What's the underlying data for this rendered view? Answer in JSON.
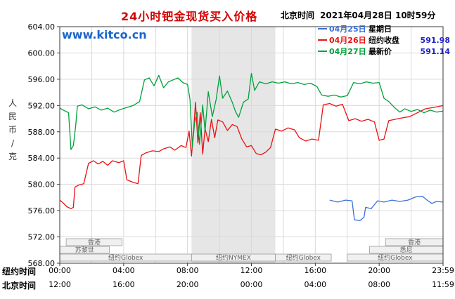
{
  "header": {
    "title": "24小时钯金现货买入价格",
    "time_label": "北京时间",
    "time_value": "2021年04月28日 10时59分"
  },
  "watermark": "www.kitco.cn",
  "y_axis_label": "人民币/克",
  "colors": {
    "title_red": "#d40000",
    "watermark_blue": "#1a66cc",
    "series_apr25_blue": "#3a6fd8",
    "series_apr26_red": "#e81212",
    "series_apr27_green": "#00a13b",
    "legend_value_blue": "#2222cc",
    "grid_gray": "#d9d9d9",
    "band_gray": "#e6e6e6"
  },
  "legend": [
    {
      "date": "04月25日",
      "label": "星期日",
      "value": "",
      "color": "#3a6fd8"
    },
    {
      "date": "04月26日",
      "label": "纽约收盘",
      "value": "591.98",
      "color": "#e81212"
    },
    {
      "date": "04月27日",
      "label": "最新价",
      "value": "591.14",
      "color": "#00a13b"
    }
  ],
  "axis": {
    "ny_label": "纽约时间",
    "bj_label": "北京时间",
    "x_tick_times": [
      0,
      4,
      8,
      12,
      16,
      20,
      24
    ],
    "ny_ticks": [
      "00:00",
      "04:00",
      "08:00",
      "12:00",
      "16:00",
      "20:00",
      "23:59"
    ],
    "bj_ticks": [
      "12:00",
      "16:00",
      "20:00",
      "00:00",
      "04:00",
      "08:00",
      "11:59"
    ],
    "y_ticks": [
      "604.00",
      "600.00",
      "596.00",
      "592.00",
      "588.00",
      "584.00",
      "580.00",
      "576.00",
      "572.00",
      "568.00"
    ]
  },
  "sessions": {
    "rows": [
      {
        "y": 340,
        "h": 10,
        "boxes": [
          {
            "label": "香港",
            "start": 0.4,
            "end": 3.9
          },
          {
            "label": "香港",
            "start": 20.4,
            "end": 24
          }
        ]
      },
      {
        "y": 351,
        "h": 10,
        "boxes": [
          {
            "label": "苏黎世",
            "start": 0,
            "end": 3.1
          },
          {
            "label": "悉尼",
            "start": 19.4,
            "end": 24
          }
        ]
      },
      {
        "y": 362,
        "h": 10,
        "boxes": [
          {
            "label": "纽约Globex",
            "start": 0,
            "end": 8.25
          },
          {
            "label": "纽约NYMEX",
            "start": 8.25,
            "end": 13.5
          },
          {
            "label": "纽约Globex",
            "start": 13.5,
            "end": 17.0
          },
          {
            "label": "纽约Globex",
            "start": 18.0,
            "end": 24
          }
        ]
      }
    ]
  },
  "chart_data": {
    "type": "line",
    "title": "24小时钯金现货买入价格",
    "ylabel": "人民币/克",
    "xlabel_rows": [
      "纽约时间",
      "北京时间"
    ],
    "ylim": [
      568,
      604
    ],
    "xlim": [
      0,
      24
    ],
    "grid": true,
    "legend_position": "top-right",
    "highlight_band": {
      "start": 8.25,
      "end": 13.5,
      "color": "#e6e6e6",
      "meaning": "纽约NYMEX session"
    },
    "series": [
      {
        "id": "apr25",
        "name": "04月25日 星期日",
        "color": "#3a6fd8",
        "points": [
          [
            16.9,
            577.6
          ],
          [
            17.4,
            577.3
          ],
          [
            17.9,
            577.6
          ],
          [
            18.3,
            577.5
          ],
          [
            18.45,
            574.6
          ],
          [
            18.8,
            574.5
          ],
          [
            19.05,
            575.0
          ],
          [
            19.15,
            576.5
          ],
          [
            19.5,
            576.3
          ],
          [
            19.9,
            577.5
          ],
          [
            20.3,
            577.3
          ],
          [
            20.8,
            577.6
          ],
          [
            21.3,
            577.4
          ],
          [
            21.8,
            577.6
          ],
          [
            22.3,
            578.1
          ],
          [
            22.7,
            578.2
          ],
          [
            23.0,
            577.6
          ],
          [
            23.3,
            577.1
          ],
          [
            23.6,
            577.4
          ],
          [
            23.98,
            577.3
          ]
        ]
      },
      {
        "id": "apr26",
        "name": "04月26日 纽约收盘 591.98",
        "color": "#e81212",
        "points": [
          [
            0,
            577.6
          ],
          [
            0.2,
            577.2
          ],
          [
            0.45,
            576.6
          ],
          [
            0.7,
            576.3
          ],
          [
            0.85,
            576.5
          ],
          [
            0.95,
            579.6
          ],
          [
            1.2,
            579.9
          ],
          [
            1.5,
            580.1
          ],
          [
            1.8,
            583.2
          ],
          [
            2.1,
            583.6
          ],
          [
            2.4,
            583.1
          ],
          [
            2.7,
            583.5
          ],
          [
            3.0,
            582.9
          ],
          [
            3.3,
            583.6
          ],
          [
            3.7,
            583.3
          ],
          [
            4.0,
            583.6
          ],
          [
            4.2,
            580.7
          ],
          [
            4.6,
            580.3
          ],
          [
            4.9,
            580.1
          ],
          [
            5.1,
            584.4
          ],
          [
            5.4,
            584.8
          ],
          [
            5.8,
            585.1
          ],
          [
            6.2,
            585.0
          ],
          [
            6.5,
            585.4
          ],
          [
            6.9,
            585.7
          ],
          [
            7.2,
            585.2
          ],
          [
            7.6,
            585.9
          ],
          [
            7.9,
            585.6
          ],
          [
            8.1,
            588.1
          ],
          [
            8.25,
            584.3
          ],
          [
            8.4,
            589.0
          ],
          [
            8.5,
            592.5
          ],
          [
            8.65,
            586.3
          ],
          [
            8.8,
            590.9
          ],
          [
            8.95,
            584.6
          ],
          [
            9.1,
            588.5
          ],
          [
            9.3,
            586.5
          ],
          [
            9.5,
            589.9
          ],
          [
            9.7,
            587.1
          ],
          [
            9.9,
            589.8
          ],
          [
            10.2,
            589.5
          ],
          [
            10.5,
            588.2
          ],
          [
            10.8,
            589.1
          ],
          [
            11.1,
            588.8
          ],
          [
            11.4,
            586.9
          ],
          [
            11.7,
            585.7
          ],
          [
            12.0,
            585.9
          ],
          [
            12.3,
            584.7
          ],
          [
            12.6,
            584.5
          ],
          [
            12.9,
            584.9
          ],
          [
            13.2,
            585.6
          ],
          [
            13.5,
            588.4
          ],
          [
            13.9,
            588.1
          ],
          [
            14.3,
            588.6
          ],
          [
            14.7,
            588.3
          ],
          [
            15.0,
            587.1
          ],
          [
            15.4,
            586.6
          ],
          [
            15.8,
            586.9
          ],
          [
            16.2,
            586.7
          ],
          [
            16.5,
            592.1
          ],
          [
            16.9,
            592.3
          ],
          [
            17.3,
            591.9
          ],
          [
            17.7,
            592.2
          ],
          [
            18.1,
            589.7
          ],
          [
            18.5,
            590.0
          ],
          [
            18.9,
            589.6
          ],
          [
            19.3,
            589.9
          ],
          [
            19.7,
            589.5
          ],
          [
            20.0,
            586.7
          ],
          [
            20.3,
            586.9
          ],
          [
            20.6,
            589.7
          ],
          [
            21.0,
            589.9
          ],
          [
            21.4,
            590.1
          ],
          [
            21.9,
            590.3
          ],
          [
            22.4,
            590.9
          ],
          [
            22.9,
            591.5
          ],
          [
            23.4,
            591.7
          ],
          [
            23.98,
            591.98
          ]
        ]
      },
      {
        "id": "apr27",
        "name": "04月27日 最新价 591.14",
        "color": "#00a13b",
        "points": [
          [
            0,
            591.6
          ],
          [
            0.3,
            591.2
          ],
          [
            0.55,
            590.9
          ],
          [
            0.7,
            585.3
          ],
          [
            0.85,
            585.9
          ],
          [
            1.0,
            589.0
          ],
          [
            1.1,
            591.9
          ],
          [
            1.4,
            592.1
          ],
          [
            1.8,
            591.5
          ],
          [
            2.2,
            591.8
          ],
          [
            2.6,
            591.3
          ],
          [
            3.0,
            591.6
          ],
          [
            3.4,
            591.0
          ],
          [
            3.8,
            591.4
          ],
          [
            4.2,
            591.7
          ],
          [
            4.6,
            592.0
          ],
          [
            5.0,
            592.6
          ],
          [
            5.3,
            595.9
          ],
          [
            5.6,
            596.2
          ],
          [
            5.9,
            595.0
          ],
          [
            6.2,
            596.6
          ],
          [
            6.5,
            594.7
          ],
          [
            6.8,
            595.6
          ],
          [
            7.1,
            595.9
          ],
          [
            7.4,
            596.2
          ],
          [
            7.7,
            595.5
          ],
          [
            8.0,
            595.2
          ],
          [
            8.15,
            593.0
          ],
          [
            8.3,
            585.7
          ],
          [
            8.45,
            589.5
          ],
          [
            8.6,
            591.0
          ],
          [
            8.75,
            586.1
          ],
          [
            8.95,
            592.1
          ],
          [
            9.1,
            588.1
          ],
          [
            9.3,
            594.1
          ],
          [
            9.55,
            590.3
          ],
          [
            9.8,
            593.0
          ],
          [
            10.0,
            596.5
          ],
          [
            10.2,
            593.1
          ],
          [
            10.5,
            594.2
          ],
          [
            10.8,
            592.5
          ],
          [
            11.0,
            591.1
          ],
          [
            11.2,
            590.2
          ],
          [
            11.5,
            592.5
          ],
          [
            11.8,
            593.0
          ],
          [
            12.0,
            596.9
          ],
          [
            12.2,
            594.3
          ],
          [
            12.5,
            595.6
          ],
          [
            12.9,
            595.3
          ],
          [
            13.3,
            595.6
          ],
          [
            13.7,
            595.4
          ],
          [
            14.1,
            595.6
          ],
          [
            14.5,
            595.3
          ],
          [
            14.9,
            595.5
          ],
          [
            15.3,
            595.2
          ],
          [
            15.7,
            595.4
          ],
          [
            16.1,
            594.9
          ],
          [
            16.4,
            593.6
          ],
          [
            16.8,
            593.4
          ],
          [
            17.2,
            593.6
          ],
          [
            17.6,
            593.3
          ],
          [
            18.0,
            593.5
          ],
          [
            18.4,
            595.5
          ],
          [
            18.8,
            595.3
          ],
          [
            19.2,
            595.6
          ],
          [
            19.6,
            595.4
          ],
          [
            20.0,
            595.5
          ],
          [
            20.3,
            593.1
          ],
          [
            20.6,
            592.6
          ],
          [
            21.0,
            591.6
          ],
          [
            21.3,
            591.0
          ],
          [
            21.6,
            591.5
          ],
          [
            22.0,
            591.1
          ],
          [
            22.4,
            591.4
          ],
          [
            22.8,
            590.9
          ],
          [
            23.2,
            591.3
          ],
          [
            23.6,
            591.0
          ],
          [
            23.98,
            591.14
          ]
        ]
      }
    ]
  }
}
